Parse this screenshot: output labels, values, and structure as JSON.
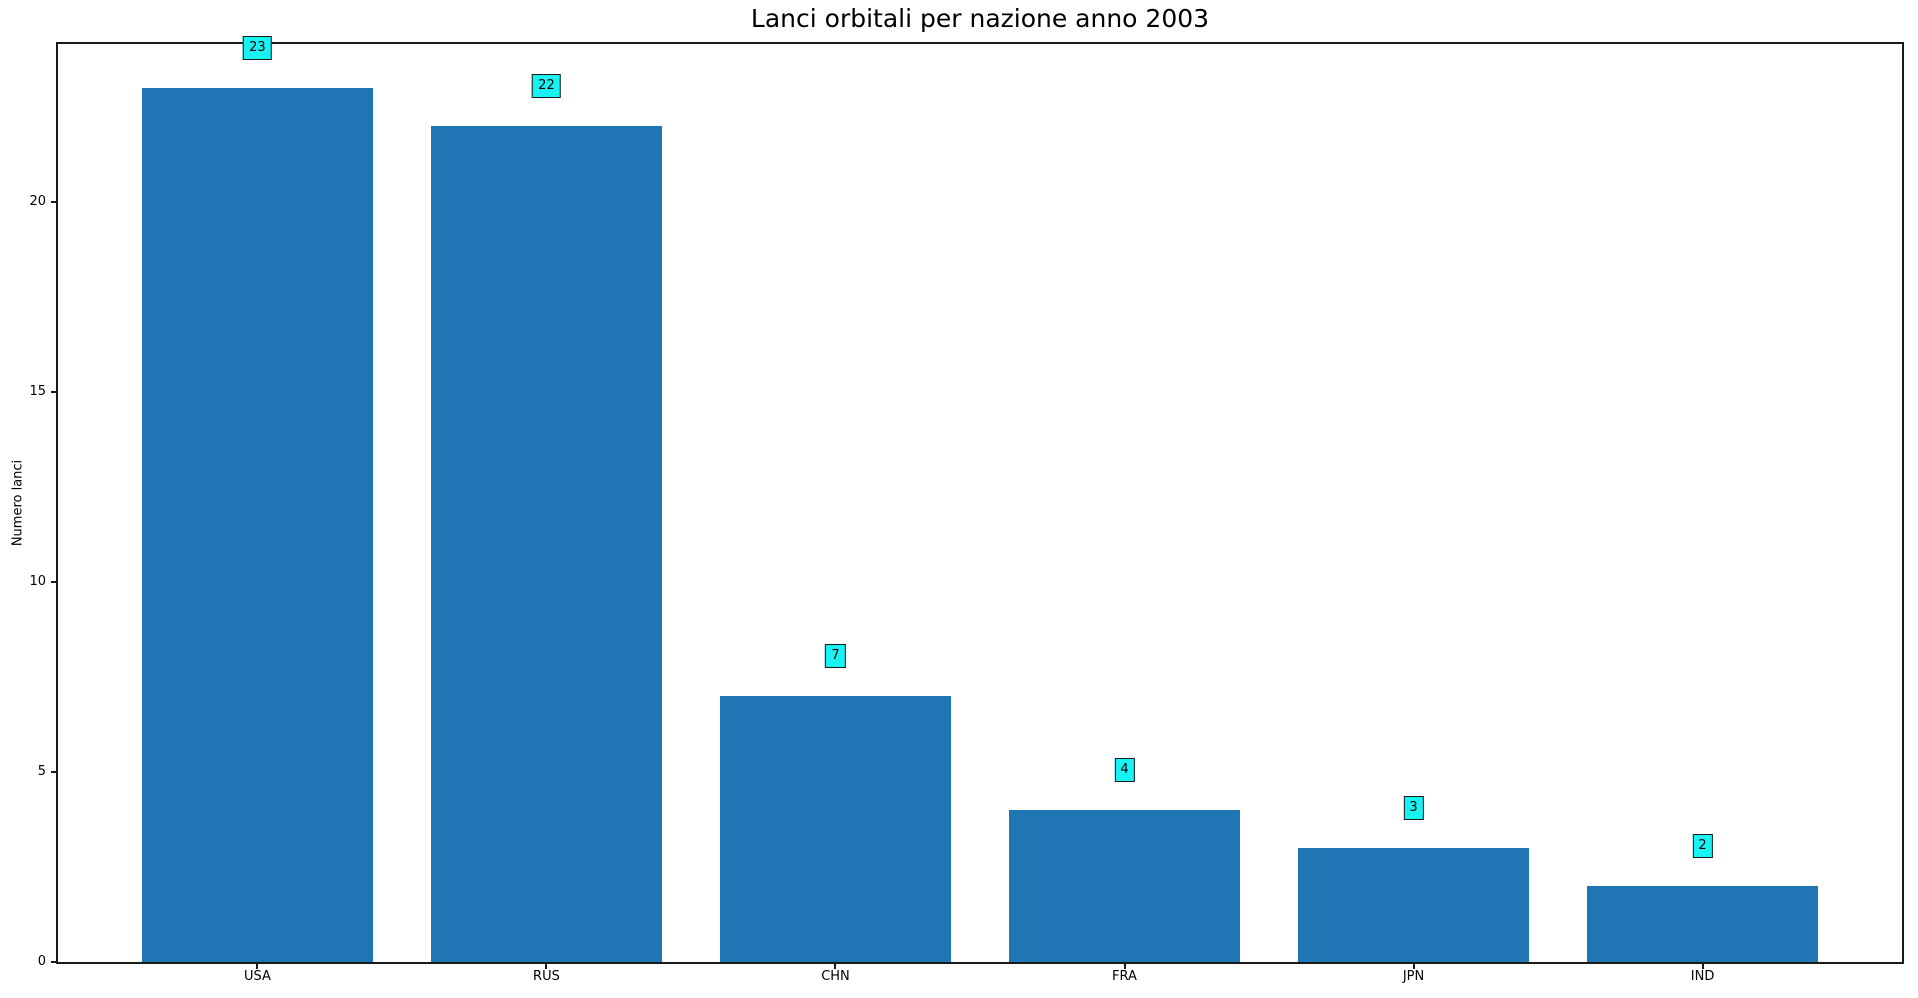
{
  "chart_data": {
    "type": "bar",
    "title": "Lanci orbitali per nazione anno 2003",
    "xlabel": "",
    "ylabel": "Numero lanci",
    "categories": [
      "USA",
      "RUS",
      "CHN",
      "FRA",
      "JPN",
      "IND"
    ],
    "values": [
      23,
      22,
      7,
      4,
      3,
      2
    ],
    "value_labels": [
      "23",
      "22",
      "7",
      "4",
      "3",
      "2"
    ],
    "yticks": [
      0,
      5,
      10,
      15,
      20
    ],
    "ylim": [
      0,
      24.15
    ],
    "xlim": [
      -0.69,
      5.69
    ],
    "bar_width": 0.8,
    "grid": false,
    "legend": false,
    "colors": {
      "bar": "#2076b4",
      "annotation_fill": "#19f2f2",
      "annotation_border": "#1a1a1a",
      "axis": "#1a1a1a",
      "text": "#000000",
      "background": "#ffffff"
    }
  }
}
